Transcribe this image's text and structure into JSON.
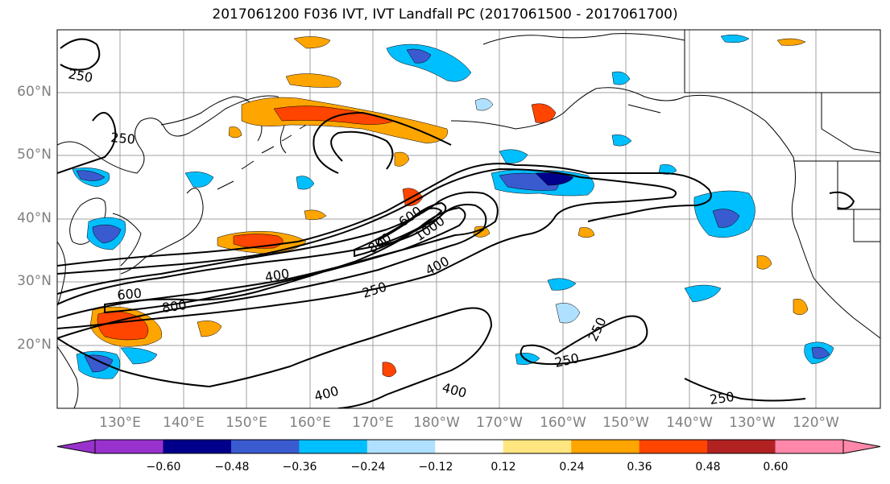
{
  "title": "2017061200 F036 IVT, IVT Landfall PC (2017061500 - 2017061700)",
  "lat_labels": [
    "60°N",
    "50°N",
    "40°N",
    "30°N",
    "20°N"
  ],
  "lon_labels": [
    "130°E",
    "140°E",
    "150°E",
    "160°E",
    "170°E",
    "180°W",
    "170°W",
    "160°W",
    "150°W",
    "140°W",
    "130°W",
    "120°W"
  ],
  "contour_labels": [
    "250",
    "250",
    "600",
    "800",
    "400",
    "250",
    "800",
    "1000",
    "600",
    "400",
    "250",
    "250",
    "400",
    "400",
    "250"
  ],
  "colorbar": {
    "colors": [
      "#9932cc",
      "#00008b",
      "#3a5bd0",
      "#00bfff",
      "#b0e0ff",
      "#ffffff",
      "#ffe680",
      "#ffa500",
      "#ff4500",
      "#b22222",
      "#ff88aa"
    ],
    "tick_labels": [
      "−0.60",
      "−0.48",
      "−0.36",
      "−0.24",
      "−0.12",
      "0.12",
      "0.24",
      "0.36",
      "0.48",
      "0.60"
    ]
  }
}
